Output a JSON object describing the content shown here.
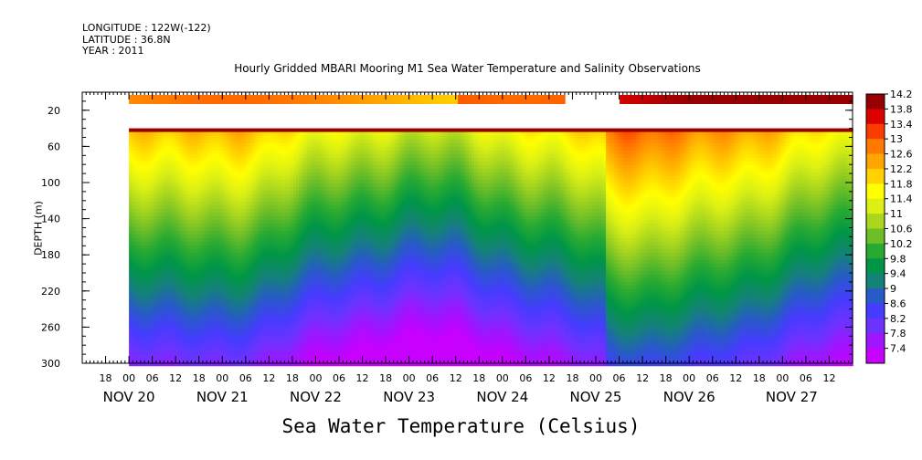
{
  "meta": {
    "longitude": "LONGITUDE : 122W(-122)",
    "latitude": "LATITUDE : 36.8N",
    "year": "YEAR : 2011"
  },
  "chart_data": {
    "type": "heatmap",
    "title": "Hourly Gridded MBARI Mooring M1 Sea Water Temperature and Salinity Observations",
    "xlabel": "Sea Water Temperature (Celsius)",
    "ylabel": "DEPTH (m)",
    "x_range_hours": [
      "2011-11-19T12:00",
      "2011-11-27T18:00"
    ],
    "ylim": [
      300,
      0
    ],
    "yticks": [
      20,
      60,
      100,
      140,
      180,
      220,
      260,
      300
    ],
    "x_hour_ticks": [
      "18",
      "00",
      "06",
      "12",
      "18",
      "00",
      "06",
      "12",
      "18",
      "00",
      "06",
      "12",
      "18",
      "00",
      "06",
      "12",
      "18",
      "00",
      "06",
      "12",
      "18",
      "00",
      "06",
      "12",
      "18",
      "00",
      "06",
      "12",
      "18",
      "00",
      "06",
      "12"
    ],
    "x_day_labels": [
      "NOV 20",
      "NOV 21",
      "NOV 22",
      "NOV 23",
      "NOV 24",
      "NOV 25",
      "NOV 26",
      "NOV 27"
    ],
    "colorbar": {
      "labels": [
        "14.2",
        "13.8",
        "13.4",
        "13",
        "12.6",
        "12.2",
        "11.8",
        "11.4",
        "11",
        "10.6",
        "10.2",
        "9.8",
        "9.4",
        "9",
        "8.6",
        "8.2",
        "7.8",
        "7.4"
      ],
      "min": 7.4,
      "max": 14.2
    },
    "data_start": "2011-11-20T00:00",
    "data_gap_surface": [
      "2011-11-24T16:00",
      "2011-11-25T06:00"
    ],
    "surface_depth_m": 10,
    "profile_top_m": 40,
    "colors": {
      "hot": "#d00000",
      "warm": "#ff8c00",
      "yellow": "#ffff00",
      "green": "#00a050",
      "blue": "#3a3aff",
      "violet": "#c000ff"
    }
  }
}
